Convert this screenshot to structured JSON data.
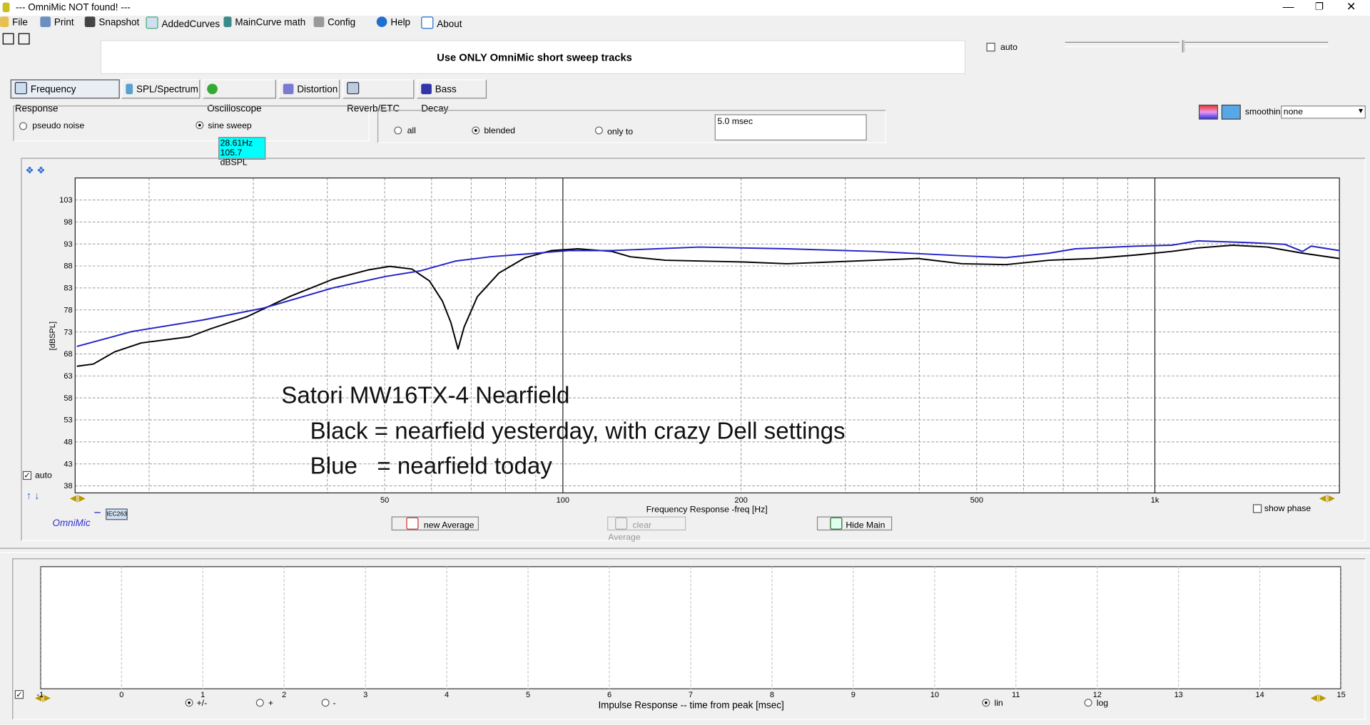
{
  "window": {
    "title": "--- OmniMic NOT found! ---"
  },
  "menu": [
    "File",
    "Print",
    "Snapshot",
    "AddedCurves",
    "MainCurve math",
    "Config",
    "Help",
    "About"
  ],
  "notice": "Use ONLY OmniMic short sweep tracks",
  "top_auto": "auto",
  "tabs": [
    "Frequency Response",
    "SPL/Spectrum",
    "Oscilloscope",
    "Distortion",
    "Reverb/ETC",
    "Bass Decay"
  ],
  "signal_options": [
    "pseudo noise",
    "sine sweep"
  ],
  "window_options": [
    "all",
    "blended",
    "only to"
  ],
  "window_time": "5.0 msec",
  "tooltip": [
    "28.61Hz",
    "105.7 dBSPL"
  ],
  "smoothing": {
    "label": "smoothing",
    "value": "none"
  },
  "frequency_chart": {
    "type": "line",
    "y_label": "[dBSPL]",
    "x_label": "Frequency Response -freq [Hz]",
    "log_x": true,
    "xlim": [
      15,
      2050
    ],
    "ylim": [
      36.4,
      108
    ],
    "xticks": [
      50,
      100,
      200,
      500,
      {
        "value": 1000,
        "label": "1k"
      }
    ],
    "xgrid": [
      20,
      30,
      40,
      60,
      70,
      80,
      90,
      300,
      400,
      600,
      700,
      800,
      900
    ],
    "yticks": [
      38,
      43,
      48,
      53,
      58,
      63,
      68,
      73,
      78,
      83,
      88,
      93,
      98,
      103
    ],
    "series": [
      {
        "color": "#000000",
        "x": [
          15.1,
          16.1,
          17.5,
          19.4,
          23.4,
          25.4,
          29.2,
          34.5,
          40.9,
          46.9,
          51.0,
          55.6,
          59.5,
          62.6,
          64.7,
          66.5,
          68.1,
          71.7,
          78.0,
          86.4,
          95.7,
          106,
          121,
          130,
          149,
          202,
          239,
          336,
          398,
          472,
          560,
          663,
          786,
          931,
          1067,
          1181,
          1353,
          1550,
          1776,
          2050
        ],
        "values": [
          65.2,
          65.7,
          68.5,
          70.5,
          71.9,
          73.7,
          76.4,
          81.0,
          85.0,
          87.1,
          87.9,
          87.3,
          84.6,
          80.0,
          75.1,
          69.1,
          74.1,
          81.0,
          86.4,
          89.9,
          91.5,
          91.9,
          91.3,
          90.1,
          89.3,
          88.9,
          88.5,
          89.3,
          89.7,
          88.5,
          88.3,
          89.3,
          89.7,
          90.5,
          91.3,
          92.1,
          92.7,
          92.3,
          90.9,
          89.7
        ]
      },
      {
        "color": "#2323c8",
        "x": [
          15.1,
          18.7,
          24.6,
          31.2,
          40.9,
          50.2,
          57.5,
          65.8,
          75.4,
          86.4,
          102.4,
          121,
          170,
          239,
          336,
          472,
          560,
          663,
          734,
          931,
          1067,
          1181,
          1308,
          1448,
          1659,
          1776,
          1837,
          2050
        ],
        "values": [
          69.7,
          73.1,
          75.7,
          78.4,
          83.0,
          85.6,
          86.9,
          89.1,
          90.1,
          90.7,
          91.5,
          91.5,
          92.3,
          91.9,
          91.3,
          90.3,
          89.9,
          90.9,
          91.9,
          92.5,
          92.7,
          93.7,
          93.5,
          93.3,
          92.9,
          91.3,
          92.5,
          91.5
        ]
      }
    ],
    "annotation": [
      "Satori MW16TX-4 Nearfield",
      "Black = nearfield yesterday, with crazy Dell settings",
      "Blue   = nearfield today"
    ]
  },
  "plot_auto": "auto",
  "brand": "OmniMic",
  "badge": "IEC263",
  "buttons": [
    "new Average",
    "clear Average",
    "Hide Main"
  ],
  "show_phase": "show phase",
  "impulse_chart": {
    "type": "line",
    "x_label": "Impulse Response  -- time from peak [msec]",
    "xlim": [
      -1,
      15
    ],
    "xticks": [
      -1,
      0,
      1,
      2,
      3,
      4,
      5,
      6,
      7,
      8,
      9,
      10,
      11,
      12,
      13,
      14,
      15
    ]
  },
  "polarity_options": [
    "+/-",
    "+",
    "-"
  ],
  "scale_options": [
    "lin",
    "log"
  ]
}
